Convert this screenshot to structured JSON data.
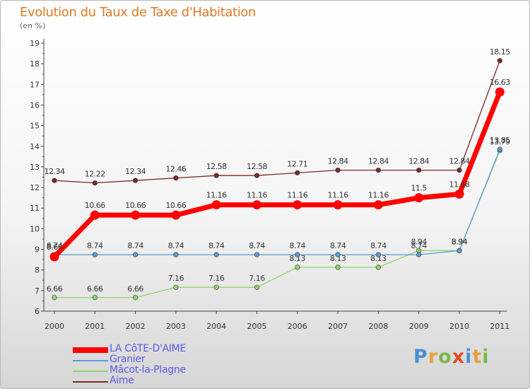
{
  "header": {
    "title": "Evolution du Taux de Taxe d'Habitation",
    "subtitle": "(en %)"
  },
  "logo": {
    "letters": [
      "P",
      "r",
      "o",
      "x",
      "i",
      "t",
      "i"
    ],
    "colors": [
      "#4a8fd6",
      "#e8a03a",
      "#7ab84a",
      "#e84a2a",
      "#4a8fd6",
      "#e8a03a",
      "#7ab84a"
    ]
  },
  "chart_data": {
    "type": "line",
    "x": [
      "2000",
      "2001",
      "2002",
      "2003",
      "2004",
      "2005",
      "2006",
      "2007",
      "2008",
      "2009",
      "2010",
      "2011"
    ],
    "ylim": [
      6,
      19
    ],
    "yticks": [
      "6",
      "7",
      "8",
      "9",
      "10",
      "11",
      "12",
      "13",
      "14",
      "15",
      "16",
      "17",
      "18",
      "19"
    ],
    "grid": false,
    "legend_position": "bottom-left",
    "series": [
      {
        "name": "LA CôTE-D'AIME",
        "color": "#ff0000",
        "values": [
          8.64,
          10.66,
          10.66,
          10.66,
          11.16,
          11.16,
          11.16,
          11.16,
          11.16,
          11.5,
          11.68,
          16.63
        ],
        "labels": [
          "8.64",
          "10.66",
          "10.66",
          "10.66",
          "11.16",
          "11.16",
          "11.16",
          "11.16",
          "11.16",
          "11.5",
          "11.68",
          "16.63"
        ]
      },
      {
        "name": "Granier",
        "color": "#5b9bd5",
        "values": [
          8.74,
          8.74,
          8.74,
          8.74,
          8.74,
          8.74,
          8.74,
          8.74,
          8.74,
          8.74,
          8.94,
          13.85
        ],
        "labels": [
          "8.74",
          "8.74",
          "8.74",
          "8.74",
          "8.74",
          "8.74",
          "8.74",
          "8.74",
          "8.74",
          "8.74",
          "8.94",
          "13.85"
        ]
      },
      {
        "name": "Mâcot-la-Plagne",
        "color": "#8fd36a",
        "values": [
          6.66,
          6.66,
          6.66,
          7.16,
          7.16,
          7.16,
          8.13,
          8.13,
          8.13,
          8.94,
          8.94,
          13.79
        ],
        "labels": [
          "6.66",
          "6.66",
          "6.66",
          "7.16",
          "7.16",
          "7.16",
          "8.13",
          "8.13",
          "8.13",
          "8.94",
          "8.94",
          "13.79"
        ]
      },
      {
        "name": "Aime",
        "color": "#7a2a2a",
        "values": [
          12.34,
          12.22,
          12.34,
          12.46,
          12.58,
          12.58,
          12.71,
          12.84,
          12.84,
          12.84,
          12.84,
          18.15
        ],
        "labels": [
          "12.34",
          "12.22",
          "12.34",
          "12.46",
          "12.58",
          "12.58",
          "12.71",
          "12.84",
          "12.84",
          "12.84",
          "12.84",
          "18.15"
        ]
      }
    ]
  }
}
